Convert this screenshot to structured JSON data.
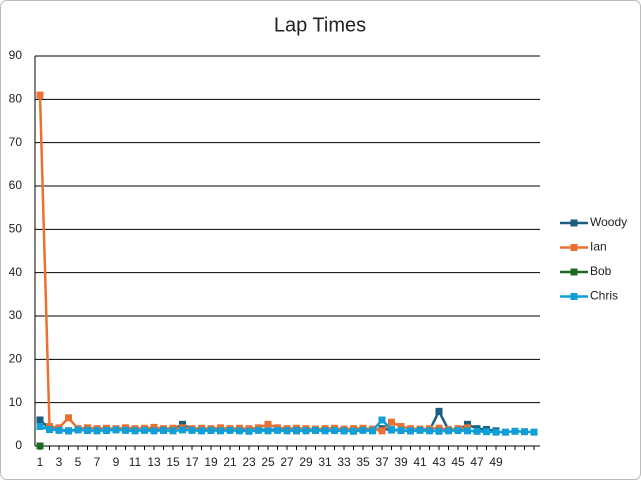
{
  "chart_data": {
    "type": "line",
    "title": "Lap Times",
    "categories": [
      1,
      null,
      3,
      null,
      5,
      null,
      7,
      null,
      9,
      null,
      11,
      null,
      13,
      null,
      15,
      null,
      17,
      null,
      19,
      null,
      21,
      null,
      23,
      null,
      25,
      null,
      27,
      null,
      29,
      null,
      31,
      null,
      33,
      null,
      35,
      null,
      37,
      null,
      39,
      null,
      41,
      null,
      43,
      null,
      45,
      null,
      47,
      null,
      49,
      null,
      null,
      null,
      null
    ],
    "series": [
      {
        "name": "Woody",
        "color": "#1b5e80",
        "values": [
          6,
          4,
          3.8,
          3.5,
          3.8,
          3.6,
          3.7,
          3.6,
          3.8,
          3.7,
          3.6,
          3.8,
          3.7,
          3.6,
          3.8,
          5,
          3.8,
          3.7,
          3.6,
          3.7,
          3.8,
          3.6,
          3.5,
          3.7,
          3.8,
          3.7,
          3.6,
          3.5,
          3.7,
          3.6,
          3.8,
          3.6,
          3.5,
          3.7,
          3.8,
          3.6,
          4,
          3.7,
          3.6,
          3.5,
          3.7,
          3.6,
          8,
          3.7,
          3.6,
          5,
          4,
          3.8,
          3.5,
          null,
          null,
          null,
          null
        ]
      },
      {
        "name": "Ian",
        "color": "#e97132",
        "values": [
          81,
          4.5,
          4.2,
          6.5,
          4,
          4.2,
          4,
          4.1,
          4,
          4.2,
          4,
          4.1,
          4.3,
          4,
          4.1,
          4.2,
          4,
          4.1,
          4,
          4.2,
          4,
          4.1,
          4,
          4.2,
          5,
          4.2,
          4,
          4.1,
          4,
          3.9,
          4,
          4.1,
          3.9,
          4,
          4.1,
          3.9,
          3.5,
          5.5,
          4.5,
          4,
          3.9,
          4,
          4.1,
          3.8,
          4,
          4.2,
          null,
          null,
          null,
          null,
          null,
          null,
          null
        ]
      },
      {
        "name": "Bob",
        "color": "#196b24",
        "values": [
          0,
          null,
          null,
          null,
          null,
          null,
          null,
          null,
          null,
          null,
          null,
          null,
          null,
          null,
          null,
          null,
          null,
          null,
          null,
          null,
          null,
          null,
          null,
          null,
          null,
          null,
          null,
          null,
          null,
          null,
          null,
          null,
          null,
          null,
          null,
          null,
          null,
          null,
          null,
          null,
          null,
          null,
          null,
          null,
          null,
          null,
          null,
          null,
          null,
          null,
          null,
          null,
          null
        ]
      },
      {
        "name": "Chris",
        "color": "#0f9ed5",
        "values": [
          4.5,
          3.8,
          3.6,
          3.5,
          3.7,
          3.6,
          3.5,
          3.6,
          3.7,
          3.6,
          3.5,
          3.6,
          3.5,
          3.6,
          3.5,
          3.7,
          3.6,
          3.5,
          3.6,
          3.5,
          3.6,
          3.5,
          3.4,
          3.6,
          3.5,
          3.6,
          3.5,
          3.6,
          3.5,
          3.6,
          3.5,
          3.6,
          3.5,
          3.4,
          3.6,
          3.5,
          6,
          3.8,
          3.6,
          3.5,
          3.6,
          3.5,
          3.4,
          3.5,
          3.6,
          3.5,
          3.4,
          3.3,
          3.2,
          3.2,
          3.4,
          3.3,
          3.2
        ]
      }
    ],
    "ylim": [
      0,
      90
    ],
    "yticks": [
      0,
      10,
      20,
      30,
      40,
      50,
      60,
      70,
      80,
      90
    ],
    "grid": true
  }
}
